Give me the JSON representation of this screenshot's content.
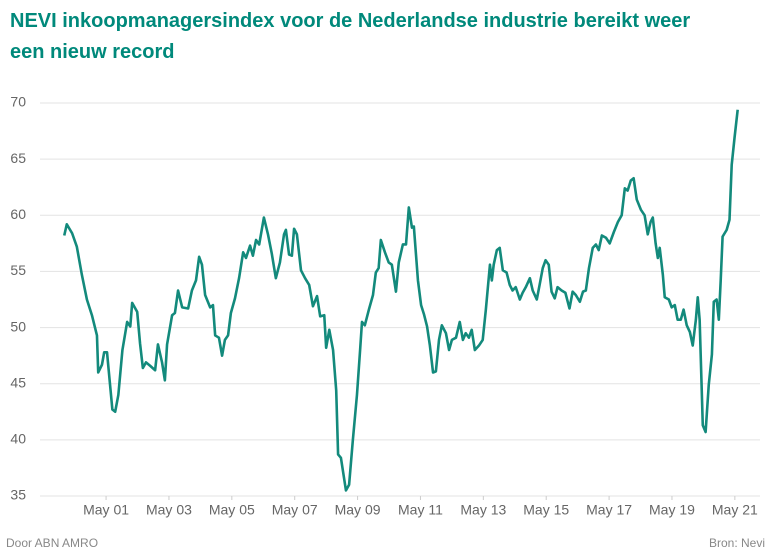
{
  "chart_data": {
    "type": "line",
    "title_lines": [
      "NEVI inkoopmanagersindex voor de Nederlandse industrie bereikt weer",
      "een nieuw record"
    ],
    "footer_left": "Door ABN AMRO",
    "footer_right": "Bron: Nevi",
    "color": "#138a7c",
    "grid": true,
    "ylim": [
      35,
      70
    ],
    "yticks": [
      35,
      40,
      45,
      50,
      55,
      60,
      65,
      70
    ],
    "xlim": [
      1999.61,
      2022.13
    ],
    "xticks": [
      {
        "value": 2001.33,
        "label": "May 01"
      },
      {
        "value": 2003.33,
        "label": "May 03"
      },
      {
        "value": 2005.33,
        "label": "May 05"
      },
      {
        "value": 2007.33,
        "label": "May 07"
      },
      {
        "value": 2009.33,
        "label": "May 09"
      },
      {
        "value": 2011.33,
        "label": "May 11"
      },
      {
        "value": 2013.33,
        "label": "May 13"
      },
      {
        "value": 2015.33,
        "label": "May 15"
      },
      {
        "value": 2017.33,
        "label": "May 17"
      },
      {
        "value": 2019.33,
        "label": "May 19"
      },
      {
        "value": 2021.33,
        "label": "May 21"
      }
    ],
    "x": [
      2000.0,
      2000.08,
      2000.25,
      2000.4,
      2000.56,
      2000.72,
      2000.88,
      2001.04,
      2001.08,
      2001.2,
      2001.27,
      2001.36,
      2001.53,
      2001.62,
      2001.72,
      2001.85,
      2002.0,
      2002.1,
      2002.16,
      2002.32,
      2002.41,
      2002.5,
      2002.6,
      2002.73,
      2002.89,
      2002.98,
      2003.11,
      2003.2,
      2003.27,
      2003.43,
      2003.52,
      2003.62,
      2003.75,
      2003.94,
      2004.06,
      2004.19,
      2004.29,
      2004.38,
      2004.48,
      2004.64,
      2004.73,
      2004.8,
      2004.92,
      2005.02,
      2005.11,
      2005.21,
      2005.3,
      2005.43,
      2005.56,
      2005.69,
      2005.78,
      2005.91,
      2006.0,
      2006.1,
      2006.2,
      2006.35,
      2006.48,
      2006.6,
      2006.73,
      2006.86,
      2006.99,
      2007.05,
      2007.15,
      2007.24,
      2007.31,
      2007.4,
      2007.53,
      2007.66,
      2007.79,
      2007.91,
      2008.04,
      2008.14,
      2008.27,
      2008.33,
      2008.43,
      2008.55,
      2008.65,
      2008.71,
      2008.8,
      2008.96,
      2009.06,
      2009.18,
      2009.31,
      2009.41,
      2009.47,
      2009.56,
      2009.69,
      2009.82,
      2009.91,
      2010.0,
      2010.07,
      2010.2,
      2010.32,
      2010.42,
      2010.55,
      2010.64,
      2010.77,
      2010.87,
      2010.96,
      2011.06,
      2011.12,
      2011.25,
      2011.35,
      2011.44,
      2011.54,
      2011.63,
      2011.73,
      2011.82,
      2011.92,
      2012.01,
      2012.14,
      2012.24,
      2012.33,
      2012.46,
      2012.58,
      2012.68,
      2012.77,
      2012.87,
      2012.96,
      2013.06,
      2013.19,
      2013.31,
      2013.41,
      2013.54,
      2013.6,
      2013.66,
      2013.76,
      2013.85,
      2013.95,
      2014.07,
      2014.17,
      2014.26,
      2014.36,
      2014.49,
      2014.58,
      2014.68,
      2014.81,
      2014.9,
      2015.03,
      2015.12,
      2015.22,
      2015.31,
      2015.41,
      2015.5,
      2015.6,
      2015.69,
      2015.82,
      2015.94,
      2016.07,
      2016.17,
      2016.27,
      2016.4,
      2016.5,
      2016.59,
      2016.69,
      2016.81,
      2016.91,
      2017.0,
      2017.1,
      2017.23,
      2017.35,
      2017.48,
      2017.61,
      2017.73,
      2017.83,
      2017.92,
      2018.02,
      2018.11,
      2018.21,
      2018.34,
      2018.46,
      2018.56,
      2018.65,
      2018.72,
      2018.81,
      2018.88,
      2018.94,
      2019.04,
      2019.1,
      2019.23,
      2019.32,
      2019.42,
      2019.51,
      2019.61,
      2019.7,
      2019.8,
      2019.9,
      2019.99,
      2020.09,
      2020.15,
      2020.21,
      2020.31,
      2020.4,
      2020.5,
      2020.6,
      2020.66,
      2020.75,
      2020.82,
      2020.88,
      2020.94,
      2021.07,
      2021.16,
      2021.23,
      2021.32,
      2021.42
    ],
    "values": [
      58.2,
      59.2,
      58.4,
      57.2,
      54.7,
      52.5,
      51.1,
      49.3,
      46.0,
      46.7,
      47.8,
      47.8,
      42.7,
      42.5,
      44.0,
      48.0,
      50.5,
      50.1,
      52.2,
      51.4,
      48.6,
      46.4,
      46.9,
      46.6,
      46.2,
      48.5,
      46.9,
      45.3,
      48.5,
      51.1,
      51.3,
      53.3,
      51.8,
      51.7,
      53.3,
      54.2,
      56.3,
      55.6,
      52.9,
      51.8,
      52.0,
      49.3,
      49.1,
      47.5,
      48.9,
      49.3,
      51.3,
      52.6,
      54.4,
      56.7,
      56.2,
      57.3,
      56.4,
      57.8,
      57.4,
      59.8,
      58.3,
      56.6,
      54.4,
      55.8,
      58.3,
      58.7,
      56.5,
      56.4,
      58.8,
      58.3,
      55.1,
      54.4,
      53.8,
      51.9,
      52.8,
      51.0,
      51.1,
      48.2,
      49.8,
      48.0,
      44.4,
      38.7,
      38.4,
      35.5,
      36.0,
      40.0,
      44.0,
      48.0,
      50.5,
      50.2,
      51.6,
      52.9,
      54.9,
      55.3,
      57.8,
      56.7,
      55.8,
      55.6,
      53.2,
      55.8,
      57.4,
      57.4,
      60.7,
      58.9,
      59.0,
      54.2,
      52.0,
      51.2,
      50.1,
      48.4,
      46.0,
      46.1,
      48.9,
      50.2,
      49.5,
      48.0,
      48.9,
      49.1,
      50.5,
      48.9,
      49.5,
      49.1,
      49.8,
      48.0,
      48.4,
      48.9,
      51.6,
      55.6,
      54.2,
      55.6,
      56.9,
      57.1,
      55.1,
      54.9,
      53.8,
      53.3,
      53.6,
      52.5,
      53.1,
      53.6,
      54.4,
      53.3,
      52.5,
      53.8,
      55.3,
      56.0,
      55.6,
      53.2,
      52.6,
      53.6,
      53.3,
      53.1,
      51.7,
      53.2,
      52.9,
      52.3,
      53.2,
      53.3,
      55.3,
      57.1,
      57.4,
      56.9,
      58.2,
      58.0,
      57.5,
      58.5,
      59.4,
      60.0,
      62.4,
      62.2,
      63.1,
      63.3,
      61.4,
      60.5,
      60.0,
      58.3,
      59.4,
      59.8,
      57.5,
      56.2,
      57.1,
      54.7,
      52.7,
      52.5,
      51.8,
      52.0,
      50.7,
      50.7,
      51.6,
      50.2,
      49.6,
      48.4,
      50.7,
      52.7,
      50.7,
      41.3,
      40.7,
      44.9,
      47.6,
      52.3,
      52.5,
      50.7,
      54.2,
      58.1,
      58.7,
      59.6,
      64.5,
      66.9,
      69.4
    ]
  }
}
